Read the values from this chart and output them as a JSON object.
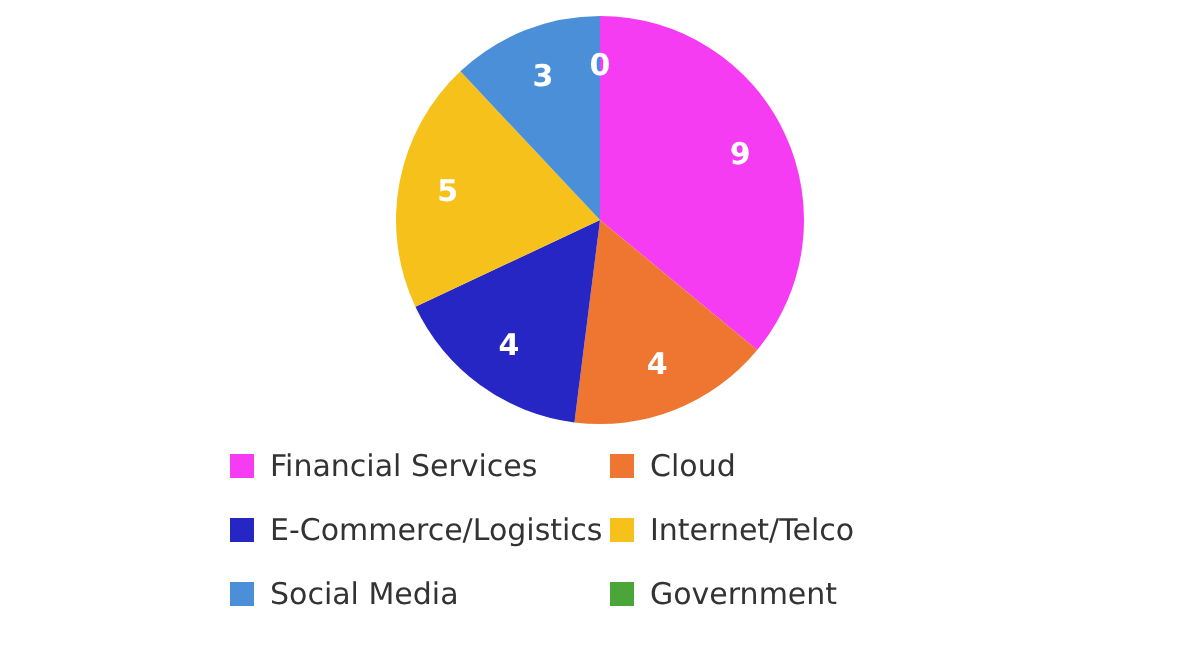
{
  "chart_data": {
    "type": "pie",
    "categories": [
      "Financial Services",
      "Cloud",
      "E-Commerce/Logistics",
      "Internet/Telco",
      "Social Media",
      "Government"
    ],
    "values": [
      9,
      4,
      4,
      5,
      3,
      0
    ],
    "colors": [
      "#f53cf2",
      "#ef7630",
      "#2626c4",
      "#f7c11c",
      "#4b8fd9",
      "#4ba63a"
    ],
    "value_labels": [
      "9",
      "4",
      "4",
      "5",
      "3",
      "0"
    ],
    "legend": "bottom"
  }
}
